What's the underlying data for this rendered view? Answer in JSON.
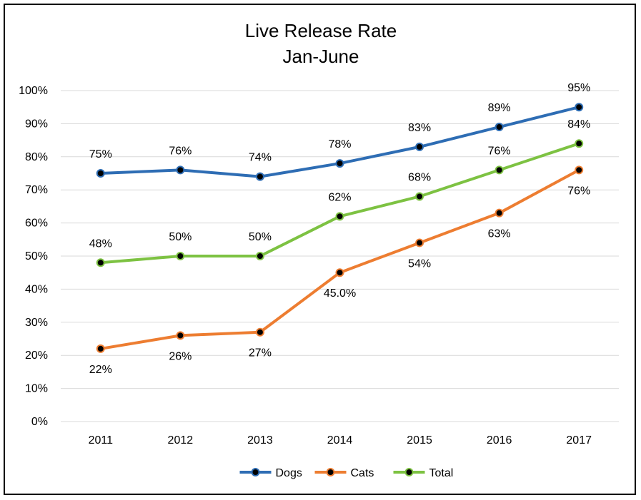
{
  "chart_data": {
    "type": "line",
    "title": "Live Release Rate",
    "subtitle": "Jan-June",
    "categories": [
      "2011",
      "2012",
      "2013",
      "2014",
      "2015",
      "2016",
      "2017"
    ],
    "ylim": [
      0,
      100
    ],
    "yticks": [
      "0%",
      "10%",
      "20%",
      "30%",
      "40%",
      "50%",
      "60%",
      "70%",
      "80%",
      "90%",
      "100%"
    ],
    "grid": true,
    "legend_position": "bottom",
    "series": [
      {
        "name": "Dogs",
        "color": "#2e6db4",
        "values": [
          75,
          76,
          74,
          78,
          83,
          89,
          95
        ],
        "labels": [
          "75%",
          "76%",
          "74%",
          "78%",
          "83%",
          "89%",
          "95%"
        ],
        "label_position": "above"
      },
      {
        "name": "Cats",
        "color": "#ed7d31",
        "values": [
          22,
          26,
          27,
          45,
          54,
          63,
          76
        ],
        "labels": [
          "22%",
          "26%",
          "27%",
          "45.0%",
          "54%",
          "63%",
          "76%"
        ],
        "label_position": "below"
      },
      {
        "name": "Total",
        "color": "#7dc242",
        "values": [
          48,
          50,
          50,
          62,
          68,
          76,
          84
        ],
        "labels": [
          "48%",
          "50%",
          "50%",
          "62%",
          "68%",
          "76%",
          "84%"
        ],
        "label_position": "above"
      }
    ]
  }
}
